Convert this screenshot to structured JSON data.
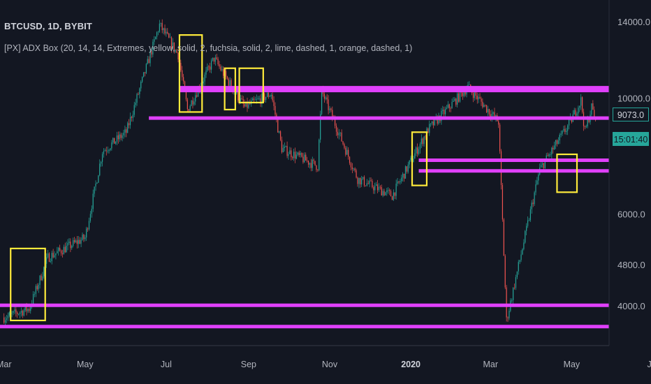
{
  "symbol_title": "BTCUSD, 1D, BYBIT",
  "indicator_label": "[PX] ADX Box (20, 14, 14, Extremes, yellow, solid, 2, fuchsia, solid, 2, lime, dashed, 1, orange, dashed, 1)",
  "last_price": "9073.0",
  "countdown": "15:01:40",
  "colors": {
    "background": "#131722",
    "up_candle": "#26a69a",
    "down_candle": "#ef5350",
    "box": "#ffeb3b",
    "level": "#e040fb",
    "axis_text": "#b2b5be"
  },
  "chart_data": {
    "type": "candlestick",
    "title": "BTCUSD, 1D, BYBIT",
    "y_axis": {
      "scale": "log",
      "ticks": [
        "14000.0",
        "10000.0",
        "6000.0",
        "4800.0",
        "4000.0"
      ]
    },
    "x_axis": {
      "ticks": [
        "Mar",
        "May",
        "Jul",
        "Sep",
        "Nov",
        "2020",
        "Mar",
        "May",
        "Jul"
      ]
    },
    "ylim": [
      3400,
      15500
    ],
    "price_anchors": [
      {
        "date": "2019-03-01",
        "price": 3800
      },
      {
        "date": "2019-03-20",
        "price": 3950
      },
      {
        "date": "2019-04-03",
        "price": 4950
      },
      {
        "date": "2019-05-01",
        "price": 5400
      },
      {
        "date": "2019-05-14",
        "price": 7900
      },
      {
        "date": "2019-06-01",
        "price": 8600
      },
      {
        "date": "2019-06-26",
        "price": 13800
      },
      {
        "date": "2019-07-10",
        "price": 12100
      },
      {
        "date": "2019-07-17",
        "price": 9500
      },
      {
        "date": "2019-08-06",
        "price": 11900
      },
      {
        "date": "2019-08-29",
        "price": 9600
      },
      {
        "date": "2019-09-18",
        "price": 10200
      },
      {
        "date": "2019-09-26",
        "price": 8000
      },
      {
        "date": "2019-10-23",
        "price": 7400
      },
      {
        "date": "2019-10-26",
        "price": 10300
      },
      {
        "date": "2019-11-22",
        "price": 7000
      },
      {
        "date": "2019-12-18",
        "price": 6500
      },
      {
        "date": "2020-01-14",
        "price": 8700
      },
      {
        "date": "2020-02-13",
        "price": 10500
      },
      {
        "date": "2020-03-07",
        "price": 9000
      },
      {
        "date": "2020-03-13",
        "price": 3750
      },
      {
        "date": "2020-04-07",
        "price": 7300
      },
      {
        "date": "2020-04-29",
        "price": 8900
      },
      {
        "date": "2020-05-08",
        "price": 9900
      },
      {
        "date": "2020-05-11",
        "price": 8600
      },
      {
        "date": "2020-05-16",
        "price": 9600
      },
      {
        "date": "2020-05-19",
        "price": 9073
      }
    ],
    "extreme_boxes": [
      {
        "start": "2019-03-06",
        "end": "2019-04-01",
        "low": 3750,
        "high": 5150
      },
      {
        "start": "2019-07-11",
        "end": "2019-07-28",
        "low": 9400,
        "high": 13200
      },
      {
        "start": "2019-08-14",
        "end": "2019-08-22",
        "low": 9500,
        "high": 11400
      },
      {
        "start": "2019-08-25",
        "end": "2019-09-12",
        "low": 9800,
        "high": 11400
      },
      {
        "start": "2020-01-02",
        "end": "2020-01-13",
        "low": 6800,
        "high": 8600
      },
      {
        "start": "2020-04-20",
        "end": "2020-05-05",
        "low": 6600,
        "high": 7800
      }
    ],
    "levels": [
      10400,
      9150,
      7600,
      7250,
      4010,
      3650
    ]
  }
}
